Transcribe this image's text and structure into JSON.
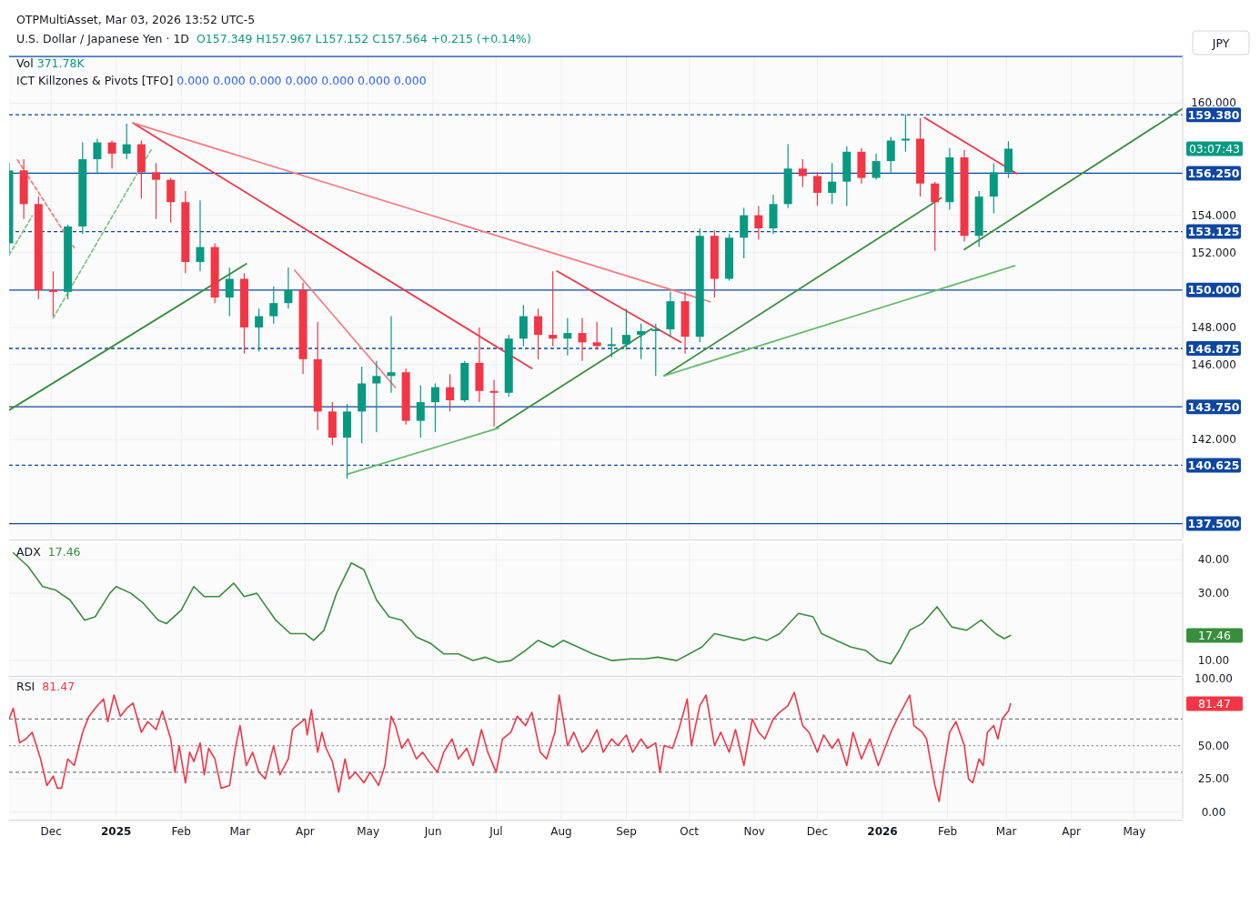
{
  "chart_data": [
    {
      "type": "candlestick",
      "title": "U.S. Dollar / Japanese Yen · 1D",
      "subtitle": "O157.349 H157.967 L157.152 C157.564 +0.215 (+0.14%)",
      "annotations": [
        "Vol 371.78K",
        "ICT Killzones & Pivots [TFO] 0.000 0.000 0.000 0.000 0.000 0.000 0.000",
        "JPY",
        "OTPMultiAsset, Mar 03, 2026 13:52 UTC-5",
        "03:07:43"
      ],
      "x": [
        "2024-11-11",
        "2024-11-18",
        "2024-11-25",
        "2024-12-02",
        "2024-12-09",
        "2024-12-16",
        "2024-12-23",
        "2024-12-30",
        "2025-01-06",
        "2025-01-13",
        "2025-01-20",
        "2025-01-27",
        "2025-02-03",
        "2025-02-10",
        "2025-02-17",
        "2025-02-24",
        "2025-03-03",
        "2025-03-10",
        "2025-03-17",
        "2025-03-24",
        "2025-03-31",
        "2025-04-07",
        "2025-04-14",
        "2025-04-21",
        "2025-04-28",
        "2025-05-05",
        "2025-05-12",
        "2025-05-19",
        "2025-05-26",
        "2025-06-02",
        "2025-06-09",
        "2025-06-16",
        "2025-06-23",
        "2025-06-30",
        "2025-07-07",
        "2025-07-14",
        "2025-07-21",
        "2025-07-28",
        "2025-08-04",
        "2025-08-11",
        "2025-08-18",
        "2025-08-25",
        "2025-09-01",
        "2025-09-08",
        "2025-09-15",
        "2025-09-22",
        "2025-09-29",
        "2025-10-06",
        "2025-10-13",
        "2025-10-20",
        "2025-10-27",
        "2025-11-03",
        "2025-11-10",
        "2025-11-17",
        "2025-11-24",
        "2025-12-01",
        "2025-12-08",
        "2025-12-15",
        "2025-12-22",
        "2025-12-29",
        "2026-01-05",
        "2026-01-12",
        "2026-01-19",
        "2026-01-26",
        "2026-02-02",
        "2026-02-09",
        "2026-02-16",
        "2026-02-23",
        "2026-03-02"
      ],
      "ohlc": [
        [
          152.5,
          156.8,
          152.0,
          156.4
        ],
        [
          156.4,
          157.0,
          153.8,
          154.6
        ],
        [
          154.6,
          155.0,
          149.5,
          150.0
        ],
        [
          150.0,
          151.0,
          148.6,
          149.9
        ],
        [
          149.9,
          153.5,
          149.5,
          153.4
        ],
        [
          153.4,
          157.9,
          153.0,
          157.0
        ],
        [
          157.0,
          158.1,
          156.2,
          157.9
        ],
        [
          157.9,
          158.0,
          156.5,
          157.3
        ],
        [
          157.3,
          158.9,
          157.0,
          157.8
        ],
        [
          157.8,
          158.0,
          154.9,
          156.3
        ],
        [
          156.3,
          156.8,
          153.8,
          155.9
        ],
        [
          155.9,
          156.0,
          153.6,
          154.7
        ],
        [
          154.7,
          155.3,
          150.9,
          151.5
        ],
        [
          151.5,
          154.8,
          151.0,
          152.3
        ],
        [
          152.3,
          152.5,
          149.3,
          149.6
        ],
        [
          149.6,
          151.2,
          148.6,
          150.6
        ],
        [
          150.6,
          150.9,
          146.6,
          148.0
        ],
        [
          148.0,
          149.0,
          146.7,
          148.6
        ],
        [
          148.6,
          150.2,
          148.2,
          149.3
        ],
        [
          149.3,
          151.2,
          149.0,
          150.0
        ],
        [
          150.0,
          150.4,
          145.5,
          146.3
        ],
        [
          146.3,
          148.3,
          142.5,
          143.5
        ],
        [
          143.5,
          144.0,
          141.7,
          142.1
        ],
        [
          142.1,
          143.9,
          139.9,
          143.5
        ],
        [
          143.5,
          145.9,
          141.8,
          145.0
        ],
        [
          145.0,
          146.2,
          142.4,
          145.4
        ],
        [
          145.4,
          148.6,
          144.5,
          145.6
        ],
        [
          145.6,
          145.8,
          142.8,
          143.0
        ],
        [
          143.0,
          144.9,
          142.1,
          144.0
        ],
        [
          144.0,
          145.0,
          142.4,
          144.8
        ],
        [
          144.8,
          145.5,
          143.5,
          144.1
        ],
        [
          144.1,
          146.2,
          144.0,
          146.1
        ],
        [
          146.1,
          148.0,
          144.0,
          144.6
        ],
        [
          144.6,
          145.2,
          142.7,
          144.5
        ],
        [
          144.5,
          147.6,
          144.3,
          147.4
        ],
        [
          147.4,
          149.2,
          147.0,
          148.6
        ],
        [
          148.6,
          149.0,
          146.3,
          147.6
        ],
        [
          147.6,
          151.0,
          147.0,
          147.4
        ],
        [
          147.4,
          148.5,
          146.5,
          147.7
        ],
        [
          147.7,
          148.5,
          146.2,
          147.2
        ],
        [
          147.2,
          148.3,
          146.8,
          147.0
        ],
        [
          147.0,
          148.0,
          146.4,
          147.1
        ],
        [
          147.1,
          149.0,
          146.8,
          147.6
        ],
        [
          147.6,
          148.2,
          146.3,
          147.8
        ],
        [
          147.8,
          148.2,
          145.4,
          147.9
        ],
        [
          147.9,
          149.9,
          147.5,
          149.4
        ],
        [
          149.4,
          149.9,
          146.6,
          147.5
        ],
        [
          147.5,
          153.3,
          147.2,
          152.9
        ],
        [
          152.9,
          153.2,
          149.6,
          150.6
        ],
        [
          150.6,
          153.0,
          150.5,
          152.8
        ],
        [
          152.8,
          154.4,
          151.7,
          154.0
        ],
        [
          154.0,
          154.5,
          152.7,
          153.3
        ],
        [
          153.3,
          155.1,
          153.0,
          154.6
        ],
        [
          154.6,
          157.8,
          154.4,
          156.5
        ],
        [
          156.5,
          157.0,
          155.5,
          156.1
        ],
        [
          156.1,
          156.3,
          154.5,
          155.2
        ],
        [
          155.2,
          156.8,
          154.6,
          155.8
        ],
        [
          155.8,
          157.7,
          154.5,
          157.4
        ],
        [
          157.4,
          157.6,
          155.7,
          156.0
        ],
        [
          156.0,
          157.3,
          155.9,
          156.9
        ],
        [
          156.9,
          158.2,
          156.3,
          158.0
        ],
        [
          158.0,
          159.4,
          157.4,
          158.1
        ],
        [
          158.1,
          159.2,
          155.0,
          155.7
        ],
        [
          155.7,
          155.8,
          152.1,
          154.7
        ],
        [
          154.7,
          157.6,
          154.3,
          157.1
        ],
        [
          157.1,
          157.5,
          152.6,
          152.9
        ],
        [
          152.9,
          155.3,
          152.3,
          155.0
        ],
        [
          155.0,
          156.8,
          154.1,
          156.3
        ],
        [
          156.3,
          157.967,
          156.0,
          157.564
        ]
      ],
      "series": [
        {
          "type": "line",
          "color": "#f23645",
          "x": [
            "2025-01-09",
            "2025-07-18"
          ],
          "values": [
            158.94,
            145.8
          ]
        },
        {
          "type": "line",
          "color": "#f77c80",
          "x": [
            "2025-01-09",
            "2025-10-11"
          ],
          "values": [
            158.94,
            149.37
          ]
        },
        {
          "type": "line",
          "color": "#f77c80",
          "x": [
            "2025-03-27",
            "2025-05-14"
          ],
          "values": [
            151.06,
            144.78
          ]
        },
        {
          "type": "line",
          "color": "#f23645",
          "x": [
            "2025-07-30",
            "2025-09-27"
          ],
          "values": [
            151.01,
            147.2
          ]
        },
        {
          "type": "line",
          "color": "#f23645",
          "x": [
            "2026-01-21",
            "2026-03-06"
          ],
          "values": [
            159.23,
            156.23
          ]
        },
        {
          "type": "line",
          "color": "#f77c80",
          "line_style": "dashed",
          "x": [
            "2024-11-15",
            "2024-12-12"
          ],
          "values": [
            156.96,
            152.27
          ]
        },
        {
          "type": "line",
          "color": "#388e3c",
          "x": [
            "2024-11-11",
            "2025-03-04"
          ],
          "values": [
            143.57,
            151.4
          ]
        },
        {
          "type": "line",
          "color": "#388e3c",
          "x": [
            "2025-07-01",
            "2025-09-13"
          ],
          "values": [
            142.61,
            147.92
          ]
        },
        {
          "type": "line",
          "color": "#388e3c",
          "x": [
            "2025-09-19",
            "2026-01-29"
          ],
          "values": [
            145.41,
            154.93
          ]
        },
        {
          "type": "line",
          "color": "#66bb6a",
          "x": [
            "2025-09-19",
            "2026-03-05"
          ],
          "values": [
            145.41,
            151.3
          ]
        },
        {
          "type": "line",
          "color": "#66bb6a",
          "x": [
            "2025-04-21",
            "2025-07-02"
          ],
          "values": [
            140.14,
            142.61
          ]
        },
        {
          "type": "line",
          "color": "#388e3c",
          "x": [
            "2026-02-09",
            "2026-05-24"
          ],
          "values": [
            152.17,
            159.71
          ]
        },
        {
          "type": "line",
          "color": "#81c784",
          "line_style": "dashed",
          "x": [
            "2024-12-02",
            "2025-01-18"
          ],
          "values": [
            148.5,
            157.58
          ]
        },
        {
          "type": "line",
          "color": "#81c784",
          "line_style": "dashed",
          "x": [
            "2024-11-11",
            "2024-11-22"
          ],
          "values": [
            151.88,
            153.96
          ]
        }
      ],
      "ref_lines": [
        {
          "axis": "y",
          "value": 162.5,
          "color": "#0d47a1"
        },
        {
          "axis": "y",
          "value": 159.38,
          "label": "159.380",
          "color": "#0d47a1",
          "line_style": "dashed"
        },
        {
          "axis": "y",
          "value": 156.25,
          "label": "156.250",
          "color": "#0d47a1"
        },
        {
          "axis": "y",
          "value": 153.125,
          "label": "153.125",
          "color": "#0d47a1",
          "line_style": "dashed"
        },
        {
          "axis": "y",
          "value": 150,
          "label": "150.000",
          "color": "#0d47a1"
        },
        {
          "axis": "y",
          "value": 146.875,
          "label": "146.875",
          "color": "#0d47a1",
          "line_style": "dashed"
        },
        {
          "axis": "y",
          "value": 143.75,
          "label": "143.750",
          "color": "#0d47a1"
        },
        {
          "axis": "y",
          "value": 140.625,
          "label": "140.625",
          "color": "#0d47a1",
          "line_style": "dashed"
        },
        {
          "axis": "y",
          "value": 137.5,
          "label": "137.500",
          "color": "#0d47a1"
        }
      ],
      "xlim": [
        "2024-11-11",
        "2026-05-24"
      ],
      "xticks": [
        {
          "value": "2024-12-01",
          "label": null
        },
        {
          "value": "2025-01-01",
          "label": null
        },
        {
          "value": "2025-02-01",
          "label": null
        },
        {
          "value": "2025-03-01",
          "label": null
        },
        {
          "value": "2025-04-01",
          "label": null
        },
        {
          "value": "2025-05-01",
          "label": null
        },
        {
          "value": "2025-06-01",
          "label": null
        },
        {
          "value": "2025-07-01",
          "label": null
        },
        {
          "value": "2025-08-01",
          "label": null
        },
        {
          "value": "2025-09-01",
          "label": null
        },
        {
          "value": "2025-10-01",
          "label": null
        },
        {
          "value": "2025-11-01",
          "label": null
        },
        {
          "value": "2025-12-01",
          "label": null
        },
        {
          "value": "2026-01-01",
          "label": null
        },
        {
          "value": "2026-02-01",
          "label": null
        },
        {
          "value": "2026-03-01",
          "label": null
        },
        {
          "value": "2026-04-01",
          "label": null
        },
        {
          "value": "2026-05-01",
          "label": null
        }
      ],
      "ylim": [
        136.7,
        162.6
      ],
      "yticks": [
        {
          "value": 142,
          "label": "142.000"
        },
        {
          "value": 146,
          "label": "146.000"
        },
        {
          "value": 148,
          "label": "148.000"
        },
        {
          "value": 152,
          "label": "152.000"
        },
        {
          "value": 154,
          "label": "154.000"
        },
        {
          "value": 160,
          "label": "160.000"
        }
      ],
      "grid": true,
      "tick_labels": "y"
    },
    {
      "type": "line",
      "title": "ADX",
      "annotations": [
        "17.46",
        "17.46"
      ],
      "x": [
        "2024-11-13",
        "2024-11-20",
        "2024-11-27",
        "2024-12-03",
        "2024-12-10",
        "2024-12-17",
        "2024-12-22",
        "2024-12-29",
        "2025-01-01",
        "2025-01-08",
        "2025-01-14",
        "2025-01-21",
        "2025-01-25",
        "2025-02-01",
        "2025-02-07",
        "2025-02-12",
        "2025-02-19",
        "2025-02-26",
        "2025-03-03",
        "2025-03-09",
        "2025-03-18",
        "2025-03-25",
        "2025-04-01",
        "2025-04-05",
        "2025-04-10",
        "2025-04-16",
        "2025-04-23",
        "2025-04-29",
        "2025-05-05",
        "2025-05-11",
        "2025-05-17",
        "2025-05-24",
        "2025-05-31",
        "2025-06-06",
        "2025-06-13",
        "2025-06-20",
        "2025-06-26",
        "2025-07-02",
        "2025-07-08",
        "2025-07-15",
        "2025-07-21",
        "2025-07-28",
        "2025-08-02",
        "2025-08-09",
        "2025-08-16",
        "2025-08-25",
        "2025-09-03",
        "2025-09-10",
        "2025-09-16",
        "2025-09-25",
        "2025-10-01",
        "2025-10-07",
        "2025-10-13",
        "2025-10-20",
        "2025-10-27",
        "2025-11-01",
        "2025-11-07",
        "2025-11-13",
        "2025-11-22",
        "2025-11-29",
        "2025-12-03",
        "2025-12-10",
        "2025-12-17",
        "2025-12-24",
        "2025-12-30",
        "2026-01-05",
        "2026-01-09",
        "2026-01-14",
        "2026-01-20",
        "2026-01-27",
        "2026-02-03",
        "2026-02-10",
        "2026-02-17",
        "2026-02-24",
        "2026-02-28",
        "2026-03-03"
      ],
      "series": [
        {
          "color": "#388e3c",
          "values": [
            42,
            38,
            32,
            31,
            28,
            22,
            23,
            30,
            32,
            30,
            27,
            22,
            21,
            25,
            32,
            29,
            29,
            33,
            29,
            30,
            22,
            18,
            18,
            16,
            19,
            30,
            39,
            37,
            28,
            23,
            22,
            17,
            15,
            12,
            12,
            10,
            11,
            9.5,
            10,
            13,
            16,
            14,
            16,
            14,
            12,
            10,
            10.5,
            10.5,
            11,
            10,
            12,
            14,
            18,
            17,
            16,
            17,
            16,
            18,
            24,
            23,
            18,
            16,
            14,
            13,
            10,
            9,
            13,
            19,
            21,
            26,
            20,
            19,
            22,
            18,
            16.5,
            17.46
          ]
        }
      ],
      "xlim": [
        "2024-11-11",
        "2026-05-24"
      ],
      "xticks": [
        {
          "value": "2024-12-01",
          "label": null
        },
        {
          "value": "2025-01-01",
          "label": null
        },
        {
          "value": "2025-02-01",
          "label": null
        },
        {
          "value": "2025-03-01",
          "label": null
        },
        {
          "value": "2025-04-01",
          "label": null
        },
        {
          "value": "2025-05-01",
          "label": null
        },
        {
          "value": "2025-06-01",
          "label": null
        },
        {
          "value": "2025-07-01",
          "label": null
        },
        {
          "value": "2025-08-01",
          "label": null
        },
        {
          "value": "2025-09-01",
          "label": null
        },
        {
          "value": "2025-10-01",
          "label": null
        },
        {
          "value": "2025-11-01",
          "label": null
        },
        {
          "value": "2025-12-01",
          "label": null
        },
        {
          "value": "2026-01-01",
          "label": null
        },
        {
          "value": "2026-02-01",
          "label": null
        },
        {
          "value": "2026-03-01",
          "label": null
        },
        {
          "value": "2026-04-01",
          "label": null
        },
        {
          "value": "2026-05-01",
          "label": null
        }
      ],
      "ylim": [
        5.7,
        44.9
      ],
      "yticks": [
        {
          "value": 10,
          "label": "10.00"
        },
        {
          "value": 30,
          "label": "30.00"
        },
        {
          "value": 40,
          "label": "40.00"
        }
      ],
      "grid": true,
      "tick_labels": "y"
    },
    {
      "type": "line",
      "title": "RSI",
      "annotations": [
        "81.47",
        "81.47"
      ],
      "x": [
        "2024-11-11",
        "2024-11-13",
        "2024-11-16",
        "2024-11-19",
        "2024-11-22",
        "2024-11-26",
        "2024-11-29",
        "2024-12-02",
        "2024-12-04",
        "2024-12-06",
        "2024-12-09",
        "2024-12-12",
        "2024-12-16",
        "2024-12-19",
        "2024-12-23",
        "2024-12-26",
        "2024-12-28",
        "2024-12-31",
        "2025-01-03",
        "2025-01-06",
        "2025-01-09",
        "2025-01-13",
        "2025-01-16",
        "2025-01-20",
        "2025-01-23",
        "2025-01-27",
        "2025-01-29",
        "2025-01-31",
        "2025-02-03",
        "2025-02-05",
        "2025-02-07",
        "2025-02-10",
        "2025-02-12",
        "2025-02-14",
        "2025-02-17",
        "2025-02-20",
        "2025-02-24",
        "2025-02-27",
        "2025-03-01",
        "2025-03-04",
        "2025-03-07",
        "2025-03-10",
        "2025-03-13",
        "2025-03-17",
        "2025-03-20",
        "2025-03-24",
        "2025-03-26",
        "2025-03-28",
        "2025-04-01",
        "2025-04-02",
        "2025-04-04",
        "2025-04-07",
        "2025-04-09",
        "2025-04-11",
        "2025-04-14",
        "2025-04-17",
        "2025-04-20",
        "2025-04-22",
        "2025-04-25",
        "2025-04-29",
        "2025-05-02",
        "2025-05-06",
        "2025-05-09",
        "2025-05-12",
        "2025-05-14",
        "2025-05-17",
        "2025-05-20",
        "2025-05-24",
        "2025-05-27",
        "2025-05-30",
        "2025-06-03",
        "2025-06-06",
        "2025-06-10",
        "2025-06-13",
        "2025-06-17",
        "2025-06-20",
        "2025-06-24",
        "2025-06-27",
        "2025-07-01",
        "2025-07-04",
        "2025-07-08",
        "2025-07-11",
        "2025-07-15",
        "2025-07-18",
        "2025-07-22",
        "2025-07-25",
        "2025-07-29",
        "2025-07-31",
        "2025-08-04",
        "2025-08-07",
        "2025-08-11",
        "2025-08-14",
        "2025-08-18",
        "2025-08-21",
        "2025-08-25",
        "2025-08-28",
        "2025-09-01",
        "2025-09-04",
        "2025-09-08",
        "2025-09-11",
        "2025-09-15",
        "2025-09-17",
        "2025-09-19",
        "2025-09-23",
        "2025-09-26",
        "2025-09-30",
        "2025-10-02",
        "2025-10-06",
        "2025-10-09",
        "2025-10-13",
        "2025-10-16",
        "2025-10-20",
        "2025-10-23",
        "2025-10-27",
        "2025-10-31",
        "2025-11-03",
        "2025-11-06",
        "2025-11-10",
        "2025-11-13",
        "2025-11-17",
        "2025-11-20",
        "2025-11-24",
        "2025-11-27",
        "2025-12-01",
        "2025-12-04",
        "2025-12-08",
        "2025-12-11",
        "2025-12-15",
        "2025-12-18",
        "2025-12-22",
        "2025-12-26",
        "2025-12-30",
        "2026-01-05",
        "2026-01-08",
        "2026-01-12",
        "2026-01-14",
        "2026-01-16",
        "2026-01-20",
        "2026-01-22",
        "2026-01-26",
        "2026-01-28",
        "2026-01-30",
        "2026-02-02",
        "2026-02-05",
        "2026-02-09",
        "2026-02-11",
        "2026-02-13",
        "2026-02-16",
        "2026-02-18",
        "2026-02-20",
        "2026-02-23",
        "2026-02-25",
        "2026-02-27",
        "2026-03-02",
        "2026-03-03"
      ],
      "series": [
        {
          "color": "#f23645",
          "values": [
            70,
            78,
            52,
            55,
            60,
            40,
            20,
            27,
            18,
            18,
            40,
            35,
            60,
            72,
            80,
            85,
            68,
            88,
            72,
            78,
            82,
            60,
            68,
            62,
            76,
            55,
            30,
            50,
            22,
            45,
            38,
            52,
            28,
            48,
            40,
            18,
            20,
            50,
            65,
            35,
            45,
            30,
            25,
            50,
            28,
            40,
            62,
            65,
            70,
            58,
            77,
            45,
            60,
            48,
            38,
            15,
            40,
            25,
            30,
            22,
            30,
            20,
            35,
            72,
            65,
            48,
            55,
            40,
            45,
            38,
            30,
            45,
            55,
            40,
            48,
            35,
            62,
            45,
            30,
            55,
            60,
            72,
            65,
            75,
            45,
            40,
            60,
            88,
            50,
            60,
            45,
            50,
            62,
            45,
            55,
            50,
            58,
            45,
            55,
            48,
            52,
            30,
            50,
            48,
            62,
            85,
            50,
            80,
            88,
            50,
            60,
            45,
            62,
            35,
            70,
            60,
            55,
            70,
            75,
            80,
            90,
            65,
            60,
            45,
            58,
            48,
            55,
            35,
            60,
            40,
            55,
            35,
            60,
            70,
            82,
            88,
            65,
            60,
            55,
            20,
            8,
            30,
            60,
            68,
            50,
            25,
            22,
            40,
            35,
            60,
            65,
            55,
            70,
            76,
            81.47
          ]
        }
      ],
      "ref_lines": [
        {
          "axis": "y",
          "value": 70,
          "color": "#787b86",
          "line_style": "dashed"
        },
        {
          "axis": "y",
          "value": 50,
          "color": "#9598a1",
          "line_style": "dotted"
        },
        {
          "axis": "y",
          "value": 30,
          "color": "#787b86",
          "line_style": "dashed"
        }
      ],
      "xlim": [
        "2024-11-11",
        "2026-05-24"
      ],
      "xticks": [
        {
          "value": "2024-12-01",
          "label": "Dec"
        },
        {
          "value": "2025-01-01",
          "label": "2025"
        },
        {
          "value": "2025-02-01",
          "label": "Feb"
        },
        {
          "value": "2025-03-01",
          "label": "Mar"
        },
        {
          "value": "2025-04-01",
          "label": "Apr"
        },
        {
          "value": "2025-05-01",
          "label": "May"
        },
        {
          "value": "2025-06-01",
          "label": "Jun"
        },
        {
          "value": "2025-07-01",
          "label": "Jul"
        },
        {
          "value": "2025-08-01",
          "label": "Aug"
        },
        {
          "value": "2025-09-01",
          "label": "Sep"
        },
        {
          "value": "2025-10-01",
          "label": "Oct"
        },
        {
          "value": "2025-11-01",
          "label": "Nov"
        },
        {
          "value": "2025-12-01",
          "label": "Dec"
        },
        {
          "value": "2026-01-01",
          "label": "2026"
        },
        {
          "value": "2026-02-01",
          "label": "Feb"
        },
        {
          "value": "2026-03-01",
          "label": "Mar"
        },
        {
          "value": "2026-04-01",
          "label": "Apr"
        },
        {
          "value": "2026-05-01",
          "label": "May"
        }
      ],
      "ylim": [
        -5,
        101
      ],
      "yticks": [
        {
          "value": 0,
          "label": "0.00"
        },
        {
          "value": 25,
          "label": "25.00"
        },
        {
          "value": 50,
          "label": "50.00"
        },
        {
          "value": 100,
          "label": "100.00"
        }
      ],
      "grid": true
    }
  ]
}
